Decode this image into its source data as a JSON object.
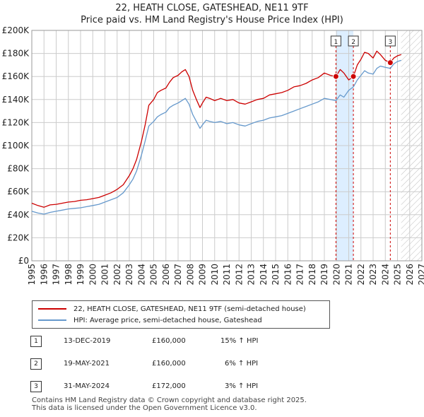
{
  "title_line1": "22, HEATH CLOSE, GATESHEAD, NE11 9TF",
  "title_line2": "Price paid vs. HM Land Registry's House Price Index (HPI)",
  "colors": {
    "price": "#cc0000",
    "hpi": "#6699cc",
    "shade": "#ddeeff",
    "grid": "#cccccc",
    "marker_line": "#cc0000"
  },
  "chart_data": {
    "type": "line",
    "title": "22, HEATH CLOSE, GATESHEAD, NE11 9TF — Price paid vs. HM Land Registry's House Price Index (HPI)",
    "xlim": [
      1995,
      2027
    ],
    "ylim": [
      0,
      200000
    ],
    "y_ticks": [
      0,
      20000,
      40000,
      60000,
      80000,
      100000,
      120000,
      140000,
      160000,
      180000,
      200000
    ],
    "y_tick_labels": [
      "£0",
      "£20K",
      "£40K",
      "£60K",
      "£80K",
      "£100K",
      "£120K",
      "£140K",
      "£160K",
      "£180K",
      "£200K"
    ],
    "x_ticks": [
      1995,
      1996,
      1997,
      1998,
      1999,
      2000,
      2001,
      2002,
      2003,
      2004,
      2005,
      2006,
      2007,
      2008,
      2009,
      2010,
      2011,
      2012,
      2013,
      2014,
      2015,
      2016,
      2017,
      2018,
      2019,
      2020,
      2021,
      2022,
      2023,
      2024,
      2025,
      2026,
      2027
    ],
    "data_end": 2025.3,
    "series": [
      {
        "name": "22, HEATH CLOSE, GATESHEAD, NE11 9TF (semi-detached house)",
        "x": [
          1995.0,
          1995.5,
          1996.0,
          1996.5,
          1997.0,
          1997.5,
          1998.0,
          1998.5,
          1999.0,
          1999.5,
          2000.0,
          2000.5,
          2001.0,
          2001.5,
          2002.0,
          2002.5,
          2003.0,
          2003.3,
          2003.6,
          2004.0,
          2004.3,
          2004.6,
          2005.0,
          2005.3,
          2005.6,
          2006.0,
          2006.3,
          2006.6,
          2007.0,
          2007.3,
          2007.6,
          2007.9,
          2008.2,
          2008.5,
          2008.8,
          2009.0,
          2009.3,
          2009.6,
          2010.0,
          2010.5,
          2011.0,
          2011.5,
          2012.0,
          2012.5,
          2013.0,
          2013.5,
          2014.0,
          2014.5,
          2015.0,
          2015.5,
          2016.0,
          2016.5,
          2017.0,
          2017.5,
          2018.0,
          2018.5,
          2019.0,
          2019.5,
          2019.95,
          2020.3,
          2020.6,
          2021.0,
          2021.38,
          2021.7,
          2022.0,
          2022.3,
          2022.6,
          2023.0,
          2023.3,
          2023.6,
          2024.0,
          2024.41,
          2024.7,
          2025.0,
          2025.3
        ],
        "values": [
          50000,
          48000,
          46500,
          48500,
          49000,
          50000,
          51000,
          51500,
          52500,
          53000,
          54000,
          55000,
          57000,
          59000,
          62000,
          66000,
          74000,
          80000,
          88000,
          104000,
          118000,
          135000,
          140000,
          146000,
          148000,
          150000,
          155000,
          159000,
          161000,
          164000,
          166000,
          160000,
          148000,
          140000,
          133000,
          137000,
          142000,
          141000,
          139000,
          141000,
          139000,
          140000,
          137000,
          136000,
          138000,
          140000,
          141000,
          144000,
          145000,
          146000,
          148000,
          151000,
          152000,
          154000,
          157000,
          159000,
          163000,
          161000,
          160000,
          166000,
          163000,
          157000,
          160000,
          170000,
          175000,
          181000,
          180000,
          176000,
          182000,
          179000,
          174000,
          172000,
          176000,
          178000,
          179000
        ]
      },
      {
        "name": "HPI: Average price, semi-detached house, Gateshead",
        "x": [
          1995.0,
          1995.5,
          1996.0,
          1996.5,
          1997.0,
          1997.5,
          1998.0,
          1998.5,
          1999.0,
          1999.5,
          2000.0,
          2000.5,
          2001.0,
          2001.5,
          2002.0,
          2002.5,
          2003.0,
          2003.3,
          2003.6,
          2004.0,
          2004.3,
          2004.6,
          2005.0,
          2005.3,
          2005.6,
          2006.0,
          2006.3,
          2006.6,
          2007.0,
          2007.3,
          2007.6,
          2007.9,
          2008.2,
          2008.5,
          2008.8,
          2009.0,
          2009.3,
          2009.6,
          2010.0,
          2010.5,
          2011.0,
          2011.5,
          2012.0,
          2012.5,
          2013.0,
          2013.5,
          2014.0,
          2014.5,
          2015.0,
          2015.5,
          2016.0,
          2016.5,
          2017.0,
          2017.5,
          2018.0,
          2018.5,
          2019.0,
          2019.5,
          2019.95,
          2020.3,
          2020.6,
          2021.0,
          2021.38,
          2021.7,
          2022.0,
          2022.3,
          2022.6,
          2023.0,
          2023.3,
          2023.6,
          2024.0,
          2024.41,
          2024.7,
          2025.0,
          2025.3
        ],
        "values": [
          43000,
          41500,
          40500,
          42000,
          43000,
          44000,
          45000,
          45500,
          46000,
          47000,
          48000,
          49000,
          51000,
          53000,
          55000,
          59000,
          66000,
          71000,
          78000,
          92000,
          104000,
          117000,
          121000,
          125000,
          127000,
          129000,
          133000,
          135000,
          137000,
          139000,
          141000,
          136000,
          127000,
          121000,
          115000,
          118000,
          122000,
          121000,
          120000,
          121000,
          119000,
          120000,
          118000,
          117000,
          119000,
          121000,
          122000,
          124000,
          125000,
          126000,
          128000,
          130000,
          132000,
          134000,
          136000,
          138000,
          141000,
          140000,
          139000,
          144000,
          142000,
          148000,
          151000,
          157000,
          161000,
          165000,
          163000,
          162000,
          167000,
          169000,
          168000,
          167000,
          171000,
          173000,
          174000
        ]
      }
    ],
    "transactions": [
      {
        "id": "1",
        "date": "13-DEC-2019",
        "x": 2019.95,
        "price": 160000,
        "price_label": "£160,000",
        "hpi_delta": "15% ↑ HPI"
      },
      {
        "id": "2",
        "date": "19-MAY-2021",
        "x": 2021.38,
        "price": 160000,
        "price_label": "£160,000",
        "hpi_delta": "6% ↑ HPI"
      },
      {
        "id": "3",
        "date": "31-MAY-2024",
        "x": 2024.41,
        "price": 172000,
        "price_label": "£172,000",
        "hpi_delta": "3% ↑ HPI"
      }
    ]
  },
  "legend": {
    "price_label": "22, HEATH CLOSE, GATESHEAD, NE11 9TF (semi-detached house)",
    "hpi_label": "HPI: Average price, semi-detached house, Gateshead"
  },
  "footer": {
    "line1": "Contains HM Land Registry data © Crown copyright and database right 2025.",
    "line2": "This data is licensed under the Open Government Licence v3.0."
  }
}
